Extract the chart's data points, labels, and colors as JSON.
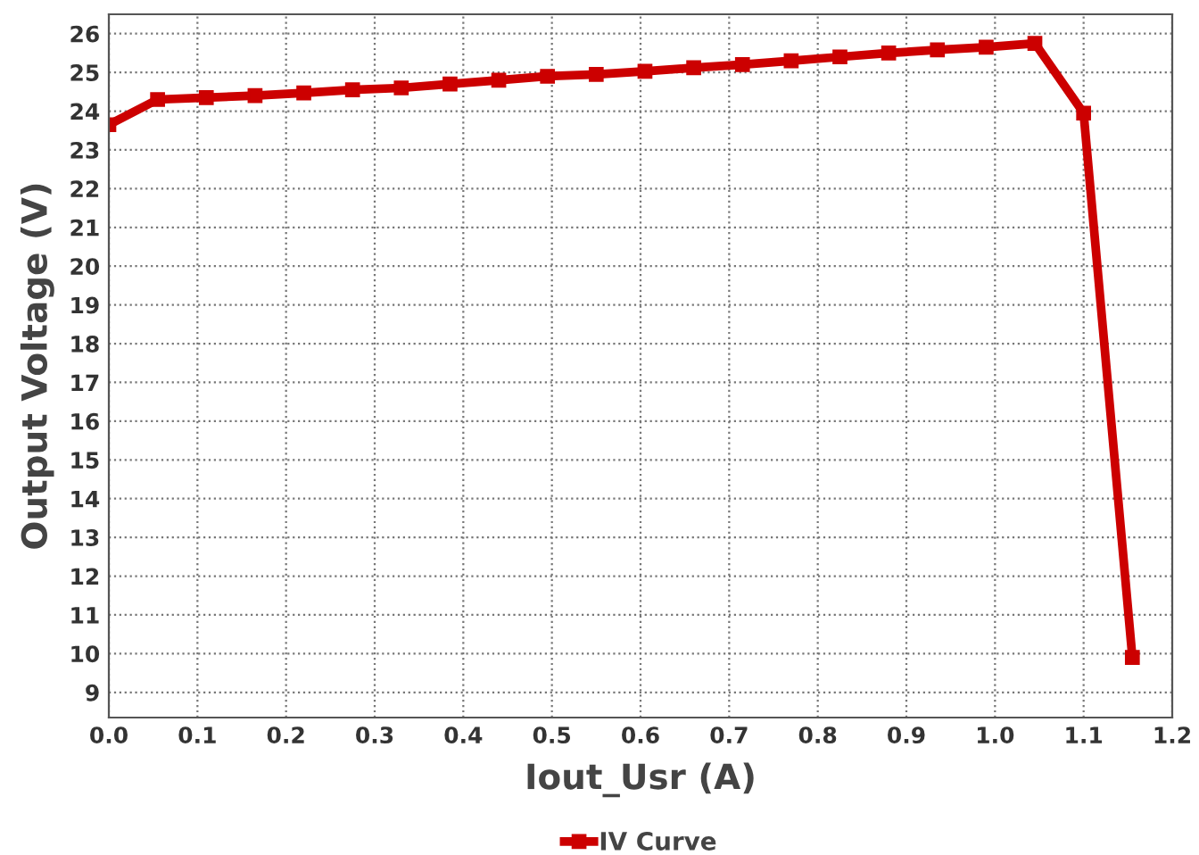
{
  "chart_data": {
    "type": "line",
    "xlabel": "Iout_Usr (A)",
    "ylabel": "Output Voltage (V)",
    "x": [
      0,
      0.055,
      0.11,
      0.165,
      0.22,
      0.275,
      0.33,
      0.385,
      0.44,
      0.495,
      0.55,
      0.605,
      0.66,
      0.715,
      0.77,
      0.825,
      0.88,
      0.935,
      0.99,
      1.045,
      1.1,
      1.155
    ],
    "series": [
      {
        "name": "IV Curve",
        "color": "#cc0000",
        "values": [
          23.65,
          24.3,
          24.35,
          24.4,
          24.47,
          24.55,
          24.6,
          24.7,
          24.8,
          24.9,
          24.95,
          25.03,
          25.12,
          25.2,
          25.3,
          25.4,
          25.5,
          25.58,
          25.65,
          25.75,
          23.95,
          9.9
        ]
      }
    ],
    "xlim": [
      0,
      1.2
    ],
    "xticks": [
      {
        "value": 0,
        "label": "0.0"
      },
      0.1,
      0.2,
      0.3,
      0.4,
      0.5,
      0.6,
      0.7,
      0.8,
      0.9,
      {
        "value": 1,
        "label": "1.0"
      },
      1.1,
      1.2
    ],
    "ylim": [
      8.35,
      26.5
    ],
    "yticks": [
      9,
      10,
      11,
      12,
      13,
      14,
      15,
      16,
      17,
      18,
      19,
      20,
      21,
      22,
      23,
      24,
      25,
      26
    ],
    "grid": true,
    "legend": "bottom",
    "marker": "square",
    "line_style": "solid"
  }
}
